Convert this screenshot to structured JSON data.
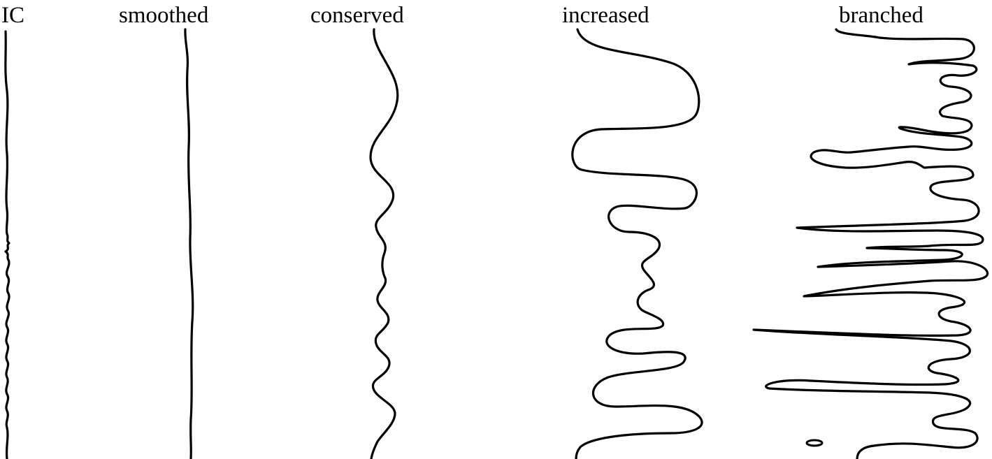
{
  "labels": [
    {
      "text": "IC"
    },
    {
      "text": "smoothed"
    },
    {
      "text": "conserved"
    },
    {
      "text": "increased"
    },
    {
      "text": "branched"
    }
  ],
  "style": {
    "line_color": "#000000",
    "background": "#ffffff"
  }
}
